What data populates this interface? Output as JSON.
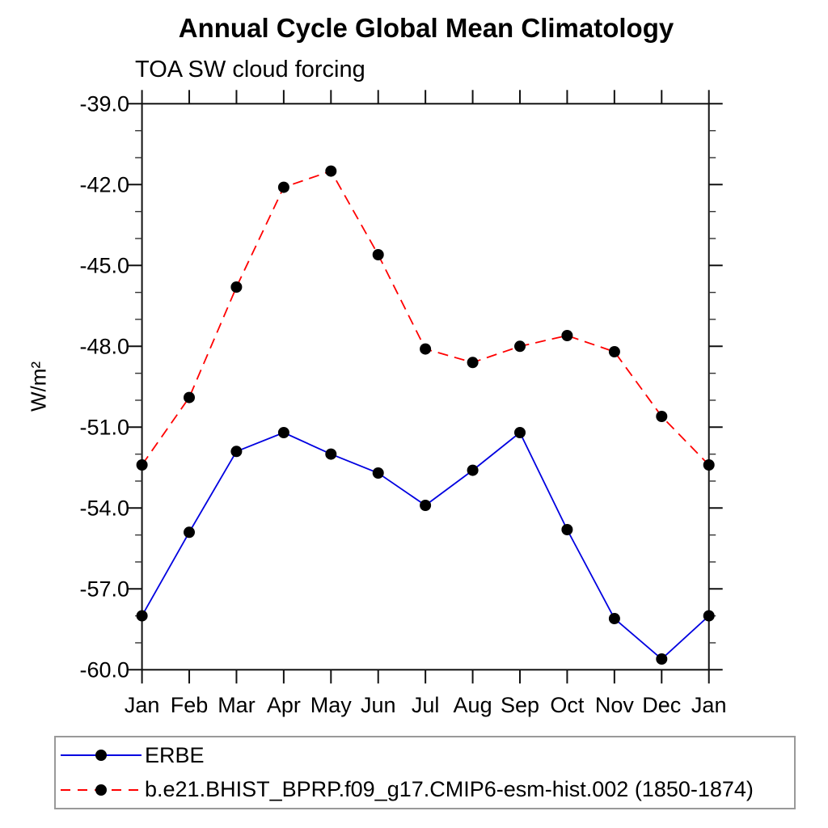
{
  "header": {
    "title": "Annual Cycle Global Mean Climatology",
    "subtitle": "TOA SW cloud forcing"
  },
  "chart_data": {
    "type": "line",
    "title": "Annual Cycle Global Mean Climatology",
    "subtitle": "TOA SW cloud forcing",
    "ylabel": "W/m²",
    "xlabel": "",
    "x_tick_labels": [
      "Jan",
      "Feb",
      "Mar",
      "Apr",
      "May",
      "Jun",
      "Jul",
      "Aug",
      "Sep",
      "Oct",
      "Nov",
      "Dec",
      "Jan"
    ],
    "ylim": [
      -60.0,
      -39.0
    ],
    "ytick_major_values": [
      -39.0,
      -42.0,
      -45.0,
      -48.0,
      -51.0,
      -54.0,
      -57.0,
      -60.0
    ],
    "ytick_major_labels": [
      "-39.0",
      "-42.0",
      "-45.0",
      "-48.0",
      "-51.0",
      "-54.0",
      "-57.0",
      "-60.0"
    ],
    "ytick_minor_step": 1.0,
    "grid": false,
    "frame_color": "#111111",
    "marker": {
      "shape": "circle",
      "color": "#000000",
      "radius": 7
    },
    "legend_position": "bottom-left-box",
    "series": [
      {
        "name": "ERBE",
        "line_style": "solid",
        "color": "#0000e0",
        "values": [
          -58.0,
          -54.9,
          -51.9,
          -51.2,
          -52.0,
          -52.7,
          -53.9,
          -52.6,
          -51.2,
          -54.8,
          -58.1,
          -59.6,
          -58.0
        ]
      },
      {
        "name": "b.e21.BHIST_BPRP.f09_g17.CMIP6-esm-hist.002 (1850-1874)",
        "line_style": "dashed",
        "color": "#ff0000",
        "values": [
          -52.4,
          -49.9,
          -45.8,
          -42.1,
          -41.5,
          -44.6,
          -48.1,
          -48.6,
          -48.0,
          -47.6,
          -48.2,
          -50.6,
          -52.4
        ]
      }
    ]
  },
  "legend": {
    "entries": [
      {
        "label": "ERBE"
      },
      {
        "label": "b.e21.BHIST_BPRP.f09_g17.CMIP6-esm-hist.002 (1850-1874)"
      }
    ]
  }
}
